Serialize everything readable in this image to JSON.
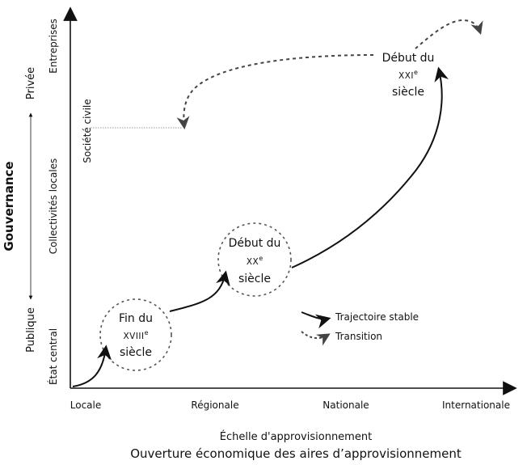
{
  "y_axis": {
    "title": "Gouvernance",
    "levels": [
      "État central",
      "Collectivités locales",
      "Entreprises"
    ],
    "extra_level": "Société civile",
    "range_low": "Publique",
    "range_high": "Privée"
  },
  "x_axis": {
    "levels": [
      "Locale",
      "Régionale",
      "Nationale",
      "Internationale"
    ],
    "label": "Échelle d'approvisionnement",
    "title": "Ouverture économique des aires d’approvisionnement"
  },
  "nodes": [
    {
      "line1": "Fin du",
      "century": "XVIII",
      "sup": "e",
      "line3": "siècle"
    },
    {
      "line1": "Début du",
      "century": "XX",
      "sup": "e",
      "line3": "siècle"
    },
    {
      "line1": "Début du",
      "century": "XXI",
      "sup": "e",
      "line3": "siècle"
    }
  ],
  "legend": {
    "stable": "Trajectoire stable",
    "transition": "Transition"
  },
  "colors": {
    "line": "#111111",
    "dashed": "#555555"
  }
}
